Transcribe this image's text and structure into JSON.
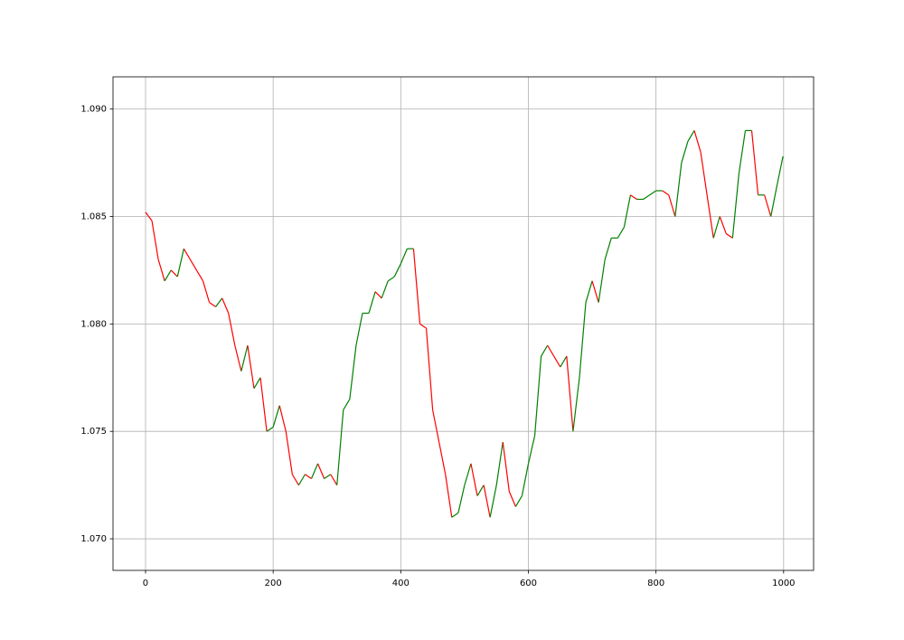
{
  "chart_data": {
    "type": "line",
    "x": [
      0,
      10,
      20,
      30,
      40,
      50,
      60,
      70,
      80,
      90,
      100,
      110,
      120,
      130,
      140,
      150,
      160,
      170,
      180,
      190,
      200,
      210,
      220,
      230,
      240,
      250,
      260,
      270,
      280,
      290,
      300,
      310,
      320,
      330,
      340,
      350,
      360,
      370,
      380,
      390,
      400,
      410,
      420,
      430,
      440,
      450,
      460,
      470,
      480,
      490,
      500,
      510,
      520,
      530,
      540,
      550,
      560,
      570,
      580,
      590,
      600,
      610,
      620,
      630,
      640,
      650,
      660,
      670,
      680,
      690,
      700,
      710,
      720,
      730,
      740,
      750,
      760,
      770,
      780,
      790,
      800,
      810,
      820,
      830,
      840,
      850,
      860,
      870,
      880,
      890,
      900,
      910,
      920,
      930,
      940,
      950,
      960,
      970,
      980,
      990,
      999
    ],
    "values": [
      1.0852,
      1.0848,
      1.083,
      1.082,
      1.0825,
      1.0822,
      1.0835,
      1.083,
      1.0825,
      1.082,
      1.081,
      1.0808,
      1.0812,
      1.0805,
      1.079,
      1.0778,
      1.079,
      1.077,
      1.0775,
      1.075,
      1.0752,
      1.0762,
      1.075,
      1.073,
      1.0725,
      1.073,
      1.0728,
      1.0735,
      1.0728,
      1.073,
      1.0725,
      1.076,
      1.0765,
      1.079,
      1.0805,
      1.0805,
      1.0815,
      1.0812,
      1.082,
      1.0822,
      1.0828,
      1.0835,
      1.0835,
      1.08,
      1.0798,
      1.076,
      1.0745,
      1.073,
      1.071,
      1.0712,
      1.0725,
      1.0735,
      1.072,
      1.0725,
      1.071,
      1.0725,
      1.0745,
      1.0722,
      1.0715,
      1.072,
      1.0735,
      1.0748,
      1.0785,
      1.079,
      1.0785,
      1.078,
      1.0785,
      1.075,
      1.0775,
      1.081,
      1.082,
      1.081,
      1.083,
      1.084,
      1.084,
      1.0845,
      1.086,
      1.0858,
      1.0858,
      1.086,
      1.0862,
      1.0862,
      1.086,
      1.085,
      1.0875,
      1.0885,
      1.089,
      1.088,
      1.086,
      1.084,
      1.085,
      1.0842,
      1.084,
      1.087,
      1.089,
      1.089,
      1.086,
      1.086,
      1.085,
      1.0865,
      1.0878
    ],
    "up_color": "green",
    "down_color": "red",
    "xlim": [
      -51,
      1047
    ],
    "ylim": [
      1.06853,
      1.0915
    ],
    "xticks": [
      0,
      200,
      400,
      600,
      800,
      1000
    ],
    "yticks": [
      {
        "value": 1.07,
        "label": "1.070"
      },
      {
        "value": 1.075,
        "label": "1.075"
      },
      {
        "value": 1.08,
        "label": "1.080"
      },
      {
        "value": 1.085,
        "label": "1.085"
      },
      {
        "value": 1.09,
        "label": "1.090"
      }
    ],
    "grid": true
  }
}
